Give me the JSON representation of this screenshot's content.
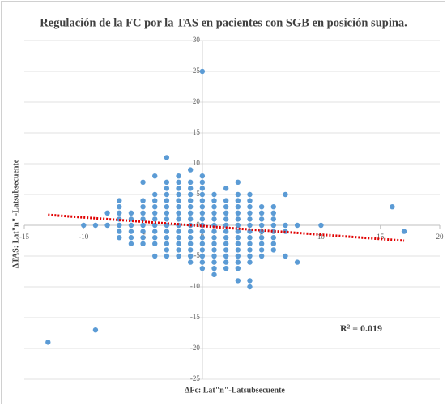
{
  "chart_data": {
    "type": "scatter",
    "title": "Regulación de la FC por la TAS en pacientes con SGB en posición supina.",
    "x_label": "ΔFc: Lat\"n\"-Latsubsecuente",
    "y_label": "ΔTAS: Lat\"n\" -Latsubsecuente",
    "annotation": "R² = 0.019",
    "color": "#5b9bd5",
    "grid": true,
    "xlim": [
      -15,
      20
    ],
    "xticks": [
      -15,
      -10,
      -5,
      0,
      5,
      10,
      15,
      20
    ],
    "ylim": [
      -25,
      30
    ],
    "yticks": [
      -25,
      -20,
      -15,
      -10,
      -5,
      0,
      5,
      10,
      15,
      20,
      25,
      30
    ],
    "x": [
      -13,
      -10,
      -9,
      -9,
      -8,
      -8,
      -7,
      -7,
      -7,
      -7,
      -7,
      -7,
      -7,
      -6,
      -6,
      -6,
      -6,
      -6,
      -6,
      -5,
      -5,
      -5,
      -5,
      -5,
      -5,
      -5,
      -5,
      -5,
      -4,
      -4,
      -4,
      -4,
      -4,
      -4,
      -4,
      -4,
      -4,
      -4,
      -4,
      -3,
      -3,
      -3,
      -3,
      -3,
      -3,
      -3,
      -3,
      -3,
      -3,
      -3,
      -3,
      -3,
      -3,
      -2,
      -2,
      -2,
      -2,
      -2,
      -2,
      -2,
      -2,
      -2,
      -2,
      -2,
      -2,
      -2,
      -2,
      -1,
      -1,
      -1,
      -1,
      -1,
      -1,
      -1,
      -1,
      -1,
      -1,
      -1,
      -1,
      -1,
      -1,
      -1,
      0,
      0,
      0,
      0,
      0,
      0,
      0,
      0,
      0,
      0,
      0,
      0,
      0,
      0,
      0,
      0,
      0,
      1,
      1,
      1,
      1,
      1,
      1,
      1,
      1,
      1,
      1,
      1,
      1,
      1,
      1,
      2,
      2,
      2,
      2,
      2,
      2,
      2,
      2,
      2,
      2,
      2,
      2,
      2,
      3,
      3,
      3,
      3,
      3,
      3,
      3,
      3,
      3,
      3,
      3,
      3,
      3,
      3,
      3,
      4,
      4,
      4,
      4,
      4,
      4,
      4,
      4,
      4,
      4,
      4,
      4,
      4,
      4,
      5,
      5,
      5,
      5,
      5,
      5,
      5,
      5,
      5,
      6,
      6,
      6,
      6,
      6,
      6,
      6,
      6,
      7,
      7,
      7,
      7,
      8,
      8,
      10,
      16,
      17
    ],
    "values": [
      -19,
      0,
      -17,
      0,
      2,
      0,
      4,
      3,
      2,
      1,
      0,
      -1,
      -2,
      2,
      1,
      0,
      -1,
      -2,
      -3,
      7,
      4,
      3,
      2,
      1,
      0,
      -1,
      -2,
      -3,
      8,
      5,
      4,
      3,
      2,
      1,
      0,
      -1,
      -2,
      -3,
      -5,
      11,
      7,
      6,
      5,
      4,
      3,
      2,
      1,
      0,
      -1,
      -2,
      -3,
      -4,
      -5,
      8,
      7,
      6,
      5,
      4,
      3,
      2,
      1,
      0,
      -1,
      -2,
      -3,
      -4,
      -5,
      9,
      7,
      6,
      5,
      4,
      3,
      2,
      1,
      0,
      -1,
      -2,
      -3,
      -4,
      -5,
      -6,
      25,
      8,
      7,
      6,
      5,
      4,
      3,
      2,
      1,
      0,
      -1,
      -2,
      -3,
      -4,
      -5,
      -6,
      -7,
      5,
      4,
      3,
      2,
      1,
      0,
      -1,
      -2,
      -3,
      -4,
      -5,
      -6,
      -7,
      -8,
      6,
      4,
      3,
      2,
      1,
      0,
      -1,
      -2,
      -3,
      -4,
      -5,
      -6,
      -7,
      7,
      5,
      4,
      3,
      2,
      1,
      0,
      -1,
      -2,
      -3,
      -4,
      -5,
      -6,
      -7,
      -9,
      5,
      4,
      3,
      2,
      1,
      0,
      -1,
      -2,
      -3,
      -4,
      -5,
      -6,
      -9,
      -10,
      3,
      2,
      1,
      0,
      -1,
      -2,
      -3,
      -4,
      -5,
      3,
      2,
      1,
      0,
      -1,
      -2,
      -3,
      -4,
      5,
      0,
      -1,
      -5,
      0,
      -6,
      0,
      3,
      -1
    ],
    "trendline": {
      "color": "#e00000",
      "x": [
        -13,
        17
      ],
      "values": [
        1.7,
        -2.5
      ]
    }
  }
}
